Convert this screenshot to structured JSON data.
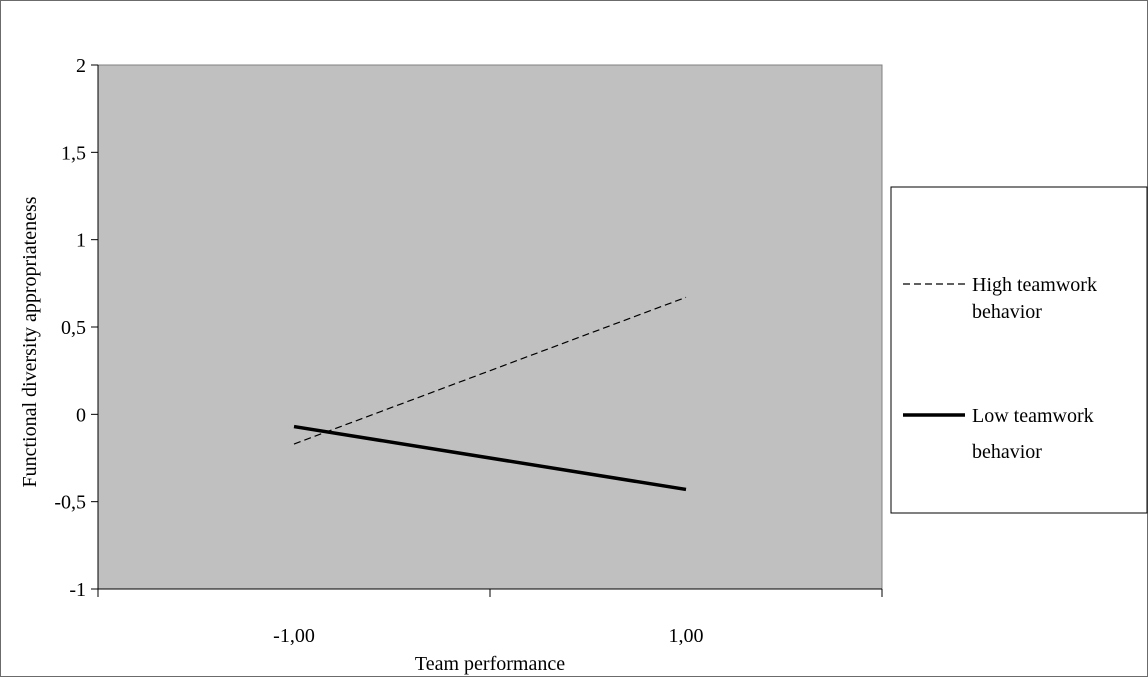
{
  "chart_data": {
    "type": "line",
    "title": "",
    "xlabel": "Team performance",
    "ylabel": "Functional diversity appropriateness",
    "categories": [
      "-1,00",
      "1,00"
    ],
    "ylim": [
      -1,
      2
    ],
    "yticks": [
      {
        "value": 2,
        "label": "2"
      },
      {
        "value": 1.5,
        "label": "1,5"
      },
      {
        "value": 1,
        "label": "1"
      },
      {
        "value": 0.5,
        "label": "0,5"
      },
      {
        "value": 0,
        "label": "0"
      },
      {
        "value": -0.5,
        "label": "-0,5"
      },
      {
        "value": -1,
        "label": "-1"
      }
    ],
    "series": [
      {
        "name": "High teamwork behavior",
        "values": [
          -0.17,
          0.67
        ],
        "style": "dashed",
        "color": "#000000"
      },
      {
        "name": "Low teamwork behavior",
        "values": [
          -0.07,
          -0.43
        ],
        "style": "solid",
        "color": "#000000"
      }
    ],
    "legend": {
      "position": "right",
      "items": [
        {
          "line1": "High teamwork",
          "line2": "behavior"
        },
        {
          "line1": "Low teamwork",
          "line2": "behavior"
        }
      ]
    },
    "grid": false,
    "plot_background": "#c0c0c0"
  }
}
